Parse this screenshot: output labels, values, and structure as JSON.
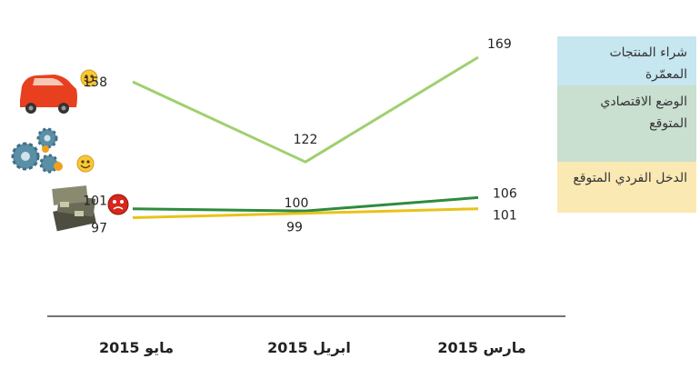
{
  "chart_data": {
    "type": "line",
    "categories": [
      "مايو 2015",
      "ابريل 2015",
      "مارس 2015"
    ],
    "series": [
      {
        "name": "شراء المنتجات المعمّرة",
        "values": [
          158,
          122,
          169
        ],
        "color": "#9fd06f",
        "legend_bg": "#c6e6f0"
      },
      {
        "name": "الوضع الاقتصادي المتوقع",
        "values": [
          101,
          100,
          106
        ],
        "color": "#2e8b3e",
        "legend_bg": "#c9dfcf"
      },
      {
        "name": "الدخل الفردي المتوقع",
        "values": [
          97,
          99,
          101
        ],
        "color": "#e8c31a",
        "legend_bg": "#fbe9b4"
      }
    ],
    "ylim": [
      40,
      190
    ],
    "grid": false,
    "legend_position": "right"
  },
  "icons": {
    "row1": [
      "car-icon",
      "smiley-happy-icon"
    ],
    "row2": [
      "gears-icon",
      "smiley-happy-icon"
    ],
    "row3": [
      "money-stack-icon",
      "smiley-sad-icon"
    ]
  },
  "colors": {
    "axis": "#222222",
    "label": "#222222"
  }
}
